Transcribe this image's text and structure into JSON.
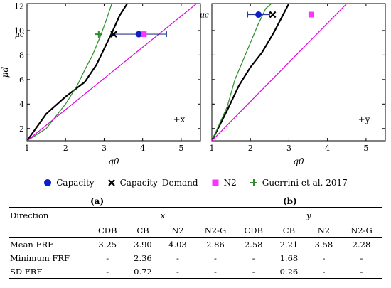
{
  "chart_data": [
    {
      "type": "line",
      "title": "",
      "xlabel": "q0",
      "ylabel": "μd",
      "xlim": [
        1,
        5.5
      ],
      "ylim": [
        1,
        12.2
      ],
      "xticks": [
        1,
        2,
        3,
        4,
        5
      ],
      "yticks": [
        2,
        4,
        6,
        8,
        10,
        12
      ],
      "direction_label": "+x",
      "mu_c_label": "μc",
      "mu_c": 9.7,
      "grid": false,
      "series": [
        {
          "name": "capacity_demand_curve",
          "color": "#000000",
          "x": [
            1,
            1.5,
            2,
            2.5,
            2.8,
            3,
            3.2,
            3.4,
            3.6
          ],
          "y": [
            1,
            3.2,
            4.6,
            5.8,
            7.2,
            8.5,
            9.8,
            11.2,
            12.2
          ]
        },
        {
          "name": "guerrini_curve",
          "color": "#2e8b2e",
          "x": [
            1,
            1.5,
            2,
            2.3,
            2.5,
            2.7,
            2.9,
            3.05,
            3.2
          ],
          "y": [
            1,
            2,
            4,
            5.5,
            6.8,
            8,
            9.5,
            10.8,
            12.2
          ]
        },
        {
          "name": "n2_curve",
          "color": "#e000e0",
          "x": [
            1,
            5.4
          ],
          "y": [
            1,
            12.2
          ]
        }
      ],
      "points": [
        {
          "series": "Capacity",
          "x": 3.9,
          "y": 9.7,
          "err_low": 3.2,
          "err_high": 4.62
        },
        {
          "series": "Capacity–Demand",
          "x": 3.25,
          "y": 9.7
        },
        {
          "series": "N2",
          "x": 4.03,
          "y": 9.7
        },
        {
          "series": "Guerrini et al. 2017",
          "x": 2.86,
          "y": 9.7
        }
      ]
    },
    {
      "type": "line",
      "title": "",
      "xlabel": "q0",
      "ylabel": "",
      "xlim": [
        1,
        5.5
      ],
      "ylim": [
        1,
        12.2
      ],
      "xticks": [
        1,
        2,
        3,
        4,
        5
      ],
      "yticks": [
        2,
        4,
        6,
        8,
        10,
        12
      ],
      "direction_label": "+y",
      "mu_c_label": "μc",
      "mu_c": 11.3,
      "grid": false,
      "series": [
        {
          "name": "capacity_demand_curve",
          "color": "#000000",
          "x": [
            1,
            1.4,
            1.7,
            2,
            2.3,
            2.6,
            2.8,
            3.0
          ],
          "y": [
            1,
            3.5,
            5.5,
            7,
            8.2,
            9.8,
            11,
            12.2
          ]
        },
        {
          "name": "guerrini_curve",
          "color": "#2e8b2e",
          "x": [
            1,
            1.4,
            1.6,
            1.8,
            2,
            2.2,
            2.4,
            2.55
          ],
          "y": [
            1,
            3.8,
            6,
            7.5,
            9,
            10.5,
            11.8,
            12.2
          ]
        },
        {
          "name": "n2_curve",
          "color": "#e000e0",
          "x": [
            1,
            4.5
          ],
          "y": [
            1,
            12.2
          ]
        }
      ],
      "points": [
        {
          "series": "Capacity",
          "x": 2.21,
          "y": 11.3,
          "err_low": 1.93,
          "err_high": 2.5
        },
        {
          "series": "Capacity–Demand",
          "x": 2.58,
          "y": 11.3
        },
        {
          "series": "N2",
          "x": 3.58,
          "y": 11.3
        }
      ]
    }
  ],
  "legend": {
    "items": [
      {
        "label": "Capacity",
        "marker": "circle",
        "color": "#0d1fc7"
      },
      {
        "label": "Capacity–Demand",
        "marker": "x",
        "color": "#000000"
      },
      {
        "label": "N2",
        "marker": "square",
        "color": "#ff33ff"
      },
      {
        "label": "Guerrini et al. 2017",
        "marker": "plus",
        "color": "#2e8b2e"
      }
    ]
  },
  "subfigure_labels": {
    "a": "(a)",
    "b": "(b)"
  },
  "table": {
    "direction_header": "Direction",
    "group_x": "x",
    "group_y": "y",
    "subheaders": [
      "CDB",
      "CB",
      "N2",
      "N2-G",
      "CDB",
      "CB",
      "N2",
      "N2-G"
    ],
    "rows": [
      {
        "label": "Mean FRF",
        "values": [
          "3.25",
          "3.90",
          "4.03",
          "2.86",
          "2.58",
          "2.21",
          "3.58",
          "2.28"
        ]
      },
      {
        "label": "Minimum FRF",
        "values": [
          "-",
          "2.36",
          "-",
          "-",
          "-",
          "1.68",
          "-",
          "-"
        ]
      },
      {
        "label": "SD FRF",
        "values": [
          "-",
          "0.72",
          "-",
          "-",
          "-",
          "0.26",
          "-",
          "-"
        ]
      }
    ]
  }
}
